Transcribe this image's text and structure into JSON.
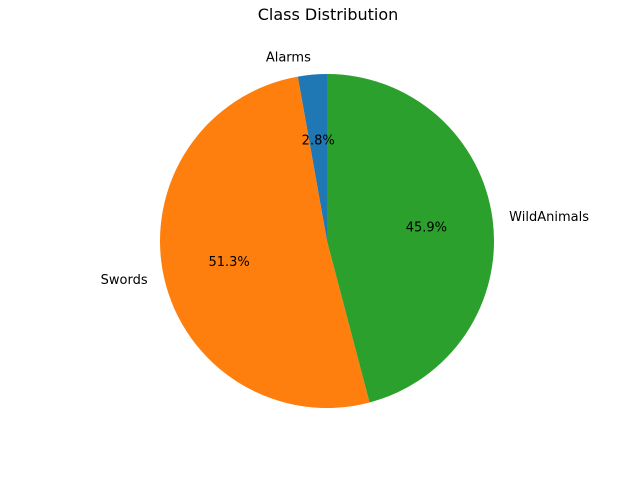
{
  "chart_data": {
    "type": "pie",
    "title": "Class Distribution",
    "start_angle_deg": 90,
    "direction": "counterclockwise",
    "legend": "none",
    "slices": [
      {
        "label": "Alarms",
        "value": 2.8,
        "pct_label": "2.8%",
        "color": "#1f77b4"
      },
      {
        "label": "Swords",
        "value": 51.3,
        "pct_label": "51.3%",
        "color": "#ff7f0e"
      },
      {
        "label": "WildAnimals",
        "value": 45.9,
        "pct_label": "45.9%",
        "color": "#2ca02c"
      }
    ]
  }
}
